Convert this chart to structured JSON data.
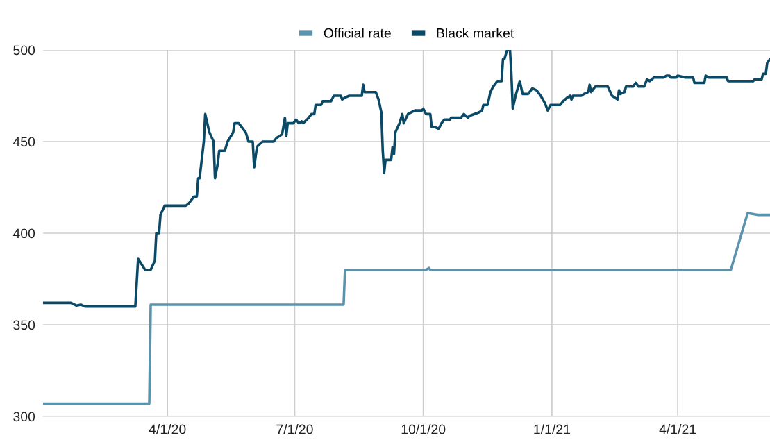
{
  "chart_data": {
    "type": "line",
    "xlim": [
      "2020-01-03",
      "2021-06-06"
    ],
    "ylim": [
      300,
      500
    ],
    "xticks": [
      {
        "value": "2020-04-01",
        "label": "4/1/20"
      },
      {
        "value": "2020-07-01",
        "label": "7/1/20"
      },
      {
        "value": "2020-10-01",
        "label": "10/1/20"
      },
      {
        "value": "2021-01-01",
        "label": "1/1/21"
      },
      {
        "value": "2021-04-01",
        "label": "4/1/21"
      }
    ],
    "yticks": [
      300,
      350,
      400,
      450,
      500
    ],
    "grid": true,
    "legend": "top",
    "marker": "none",
    "line_style": "solid",
    "series": [
      {
        "name": "Official rate",
        "color": "#5b93ad",
        "x": [
          "2020-01-03",
          "2020-03-19",
          "2020-03-20",
          "2020-08-05",
          "2020-08-06",
          "2020-10-03",
          "2020-10-05",
          "2020-10-06",
          "2021-05-09",
          "2021-05-21",
          "2021-05-28",
          "2021-06-06"
        ],
        "values": [
          307,
          307,
          361,
          361,
          380,
          380,
          381,
          380,
          380,
          411,
          410,
          410
        ]
      },
      {
        "name": "Black market",
        "color": "#0b4a66",
        "x": [
          "2020-01-03",
          "2020-01-23",
          "2020-01-27",
          "2020-01-30",
          "2020-02-02",
          "2020-03-09",
          "2020-03-11",
          "2020-03-16",
          "2020-03-20",
          "2020-03-23",
          "2020-03-24",
          "2020-03-26",
          "2020-03-27",
          "2020-03-30",
          "2020-04-14",
          "2020-04-16",
          "2020-04-20",
          "2020-04-22",
          "2020-04-23",
          "2020-04-24",
          "2020-04-27",
          "2020-04-28",
          "2020-05-01",
          "2020-05-04",
          "2020-05-05",
          "2020-05-07",
          "2020-05-08",
          "2020-05-12",
          "2020-05-14",
          "2020-05-18",
          "2020-05-19",
          "2020-05-22",
          "2020-05-27",
          "2020-05-29",
          "2020-06-01",
          "2020-06-02",
          "2020-06-04",
          "2020-06-05",
          "2020-06-08",
          "2020-06-16",
          "2020-06-18",
          "2020-06-22",
          "2020-06-24",
          "2020-06-25",
          "2020-06-26",
          "2020-06-30",
          "2020-07-02",
          "2020-07-04",
          "2020-07-06",
          "2020-07-07",
          "2020-07-11",
          "2020-07-13",
          "2020-07-15",
          "2020-07-16",
          "2020-07-20",
          "2020-07-21",
          "2020-07-27",
          "2020-07-29",
          "2020-08-03",
          "2020-08-04",
          "2020-08-06",
          "2020-08-09",
          "2020-08-18",
          "2020-08-19",
          "2020-08-20",
          "2020-08-28",
          "2020-08-30",
          "2020-09-01",
          "2020-09-02",
          "2020-09-03",
          "2020-09-04",
          "2020-09-08",
          "2020-09-09",
          "2020-09-10",
          "2020-09-11",
          "2020-09-14",
          "2020-09-16",
          "2020-09-17",
          "2020-09-20",
          "2020-09-25",
          "2020-09-30",
          "2020-10-01",
          "2020-10-03",
          "2020-10-06",
          "2020-10-07",
          "2020-10-09",
          "2020-10-12",
          "2020-10-14",
          "2020-10-16",
          "2020-10-20",
          "2020-10-21",
          "2020-10-28",
          "2020-10-30",
          "2020-11-02",
          "2020-11-03",
          "2020-11-10",
          "2020-11-12",
          "2020-11-13",
          "2020-11-16",
          "2020-11-18",
          "2020-11-20",
          "2020-11-23",
          "2020-11-26",
          "2020-11-27",
          "2020-11-28",
          "2020-11-30",
          "2020-12-02",
          "2020-12-03",
          "2020-12-04",
          "2020-12-06",
          "2020-12-09",
          "2020-12-11",
          "2020-12-15",
          "2020-12-18",
          "2020-12-21",
          "2020-12-24",
          "2020-12-27",
          "2020-12-29",
          "2020-12-31",
          "2021-01-07",
          "2021-01-09",
          "2021-01-12",
          "2021-01-14",
          "2021-01-15",
          "2021-01-16",
          "2021-01-22",
          "2021-01-24",
          "2021-01-27",
          "2021-01-28",
          "2021-01-29",
          "2021-02-01",
          "2021-02-10",
          "2021-02-13",
          "2021-02-15",
          "2021-02-17",
          "2021-02-18",
          "2021-02-19",
          "2021-02-22",
          "2021-02-23",
          "2021-02-28",
          "2021-03-02",
          "2021-03-04",
          "2021-03-08",
          "2021-03-10",
          "2021-03-12",
          "2021-03-15",
          "2021-03-22",
          "2021-03-24",
          "2021-03-26",
          "2021-03-27",
          "2021-03-31",
          "2021-04-01",
          "2021-04-06",
          "2021-04-12",
          "2021-04-13",
          "2021-04-20",
          "2021-04-21",
          "2021-04-23",
          "2021-05-06",
          "2021-05-07",
          "2021-05-25",
          "2021-05-26",
          "2021-05-31",
          "2021-06-01",
          "2021-06-03",
          "2021-06-04",
          "2021-06-06"
        ],
        "values": [
          362,
          362,
          360.5,
          361,
          360,
          360,
          386,
          380,
          380,
          385,
          400,
          400,
          410,
          415,
          415,
          416,
          420,
          420,
          430,
          430,
          450,
          465,
          455,
          450,
          430,
          438,
          445,
          445,
          450,
          455,
          460,
          460,
          455,
          450,
          450,
          436,
          447,
          448,
          450,
          450,
          452,
          454,
          463,
          453,
          460,
          460,
          462,
          460,
          461,
          460,
          463,
          465,
          465,
          470,
          470,
          472,
          472,
          475,
          475,
          473,
          474,
          475,
          475,
          481,
          477,
          477,
          473,
          466,
          445,
          433,
          440,
          440,
          447,
          443,
          455,
          460,
          465,
          460,
          465,
          467,
          467,
          468,
          465,
          465,
          458,
          458,
          457,
          460,
          462,
          462,
          463,
          463,
          465,
          463,
          464,
          466,
          467,
          470,
          470,
          477,
          480,
          483,
          483,
          495,
          495,
          500,
          500,
          487,
          468,
          475,
          483,
          476,
          476,
          479,
          478,
          475,
          471,
          467,
          470,
          470,
          472,
          474,
          475,
          473,
          475,
          475,
          476,
          477,
          481,
          477,
          480,
          480,
          475,
          474,
          473,
          478,
          476,
          477,
          480,
          480,
          482,
          480,
          480,
          484,
          483,
          485,
          485,
          486,
          486,
          485,
          485,
          486,
          485,
          485,
          482,
          482,
          486,
          485,
          485,
          483,
          483,
          484,
          484,
          487,
          487,
          493,
          495
        ]
      }
    ]
  }
}
